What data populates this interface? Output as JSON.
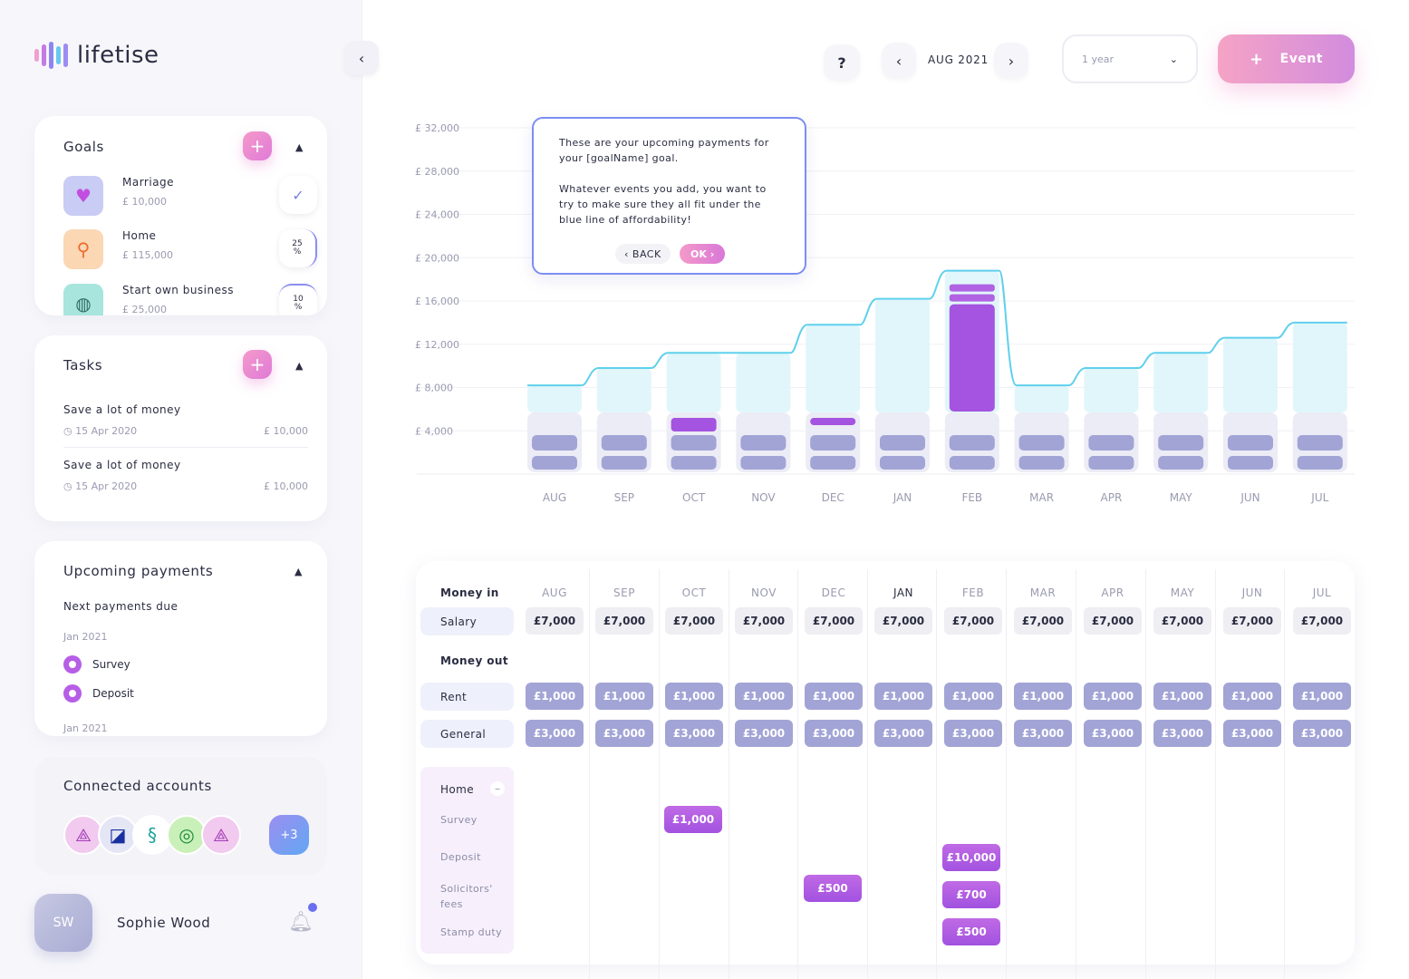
{
  "app": {
    "name": "lifetise"
  },
  "colors": {
    "accent_pink": "#f49ac9",
    "accent_purple": "#b65ee6",
    "affordability_line": "#5fd0ec",
    "expense_bar": "#a2a4d6"
  },
  "goals": {
    "title": "Goals",
    "items": [
      {
        "name": "Marriage",
        "amount": "£ 10,000",
        "icon": "heart-icon",
        "status": "check"
      },
      {
        "name": "Home",
        "amount": "£ 115,000",
        "icon": "key-icon",
        "status": "25\n%"
      },
      {
        "name": "Start own business",
        "amount": "£ 25,000",
        "icon": "globe-icon",
        "status": "10\n%"
      }
    ]
  },
  "tasks": {
    "title": "Tasks",
    "items": [
      {
        "name": "Save a lot of money",
        "date": "15 Apr 2020",
        "amount": "£ 10,000"
      },
      {
        "name": "Save a lot of money",
        "date": "15 Apr 2020",
        "amount": "£ 10,000"
      }
    ]
  },
  "payments": {
    "title": "Upcoming payments",
    "subtitle": "Next payments due",
    "month1": "Jan 2021",
    "item1": "Survey",
    "item2": "Deposit",
    "month2": "Jan 2021"
  },
  "accounts": {
    "title": "Connected accounts",
    "more": "+3"
  },
  "user": {
    "initials": "SW",
    "name": "Sophie Wood"
  },
  "topbar": {
    "help": "?",
    "month": "AUG 2021",
    "period": "1 year",
    "event_label": "Event"
  },
  "tooltip": {
    "line1": "These are your upcoming payments for your [goalName] goal.",
    "line2": "Whatever events you add, you want to try to make sure they all fit under the blue line of affordability!",
    "back": "BACK",
    "ok": "OK"
  },
  "chart_data": {
    "type": "bar",
    "categories": [
      "AUG",
      "SEP",
      "OCT",
      "NOV",
      "DEC",
      "JAN",
      "FEB",
      "MAR",
      "APR",
      "MAY",
      "JUN",
      "JUL"
    ],
    "y_ticks": [
      "£ 4,000",
      "£ 8,000",
      "£ 12,000",
      "£ 16,000",
      "£ 20,000",
      "£ 24,000",
      "£ 28,000",
      "£ 32,000"
    ],
    "ylim": [
      0,
      32000
    ],
    "series": [
      {
        "name": "Rent",
        "values": [
          1000,
          1000,
          1000,
          1000,
          1000,
          1000,
          1000,
          1000,
          1000,
          1000,
          1000,
          1000
        ]
      },
      {
        "name": "General",
        "values": [
          3000,
          3000,
          3000,
          3000,
          3000,
          3000,
          3000,
          3000,
          3000,
          3000,
          3000,
          3000
        ]
      },
      {
        "name": "Home",
        "values": [
          0,
          0,
          1000,
          0,
          500,
          0,
          11200,
          0,
          0,
          0,
          0,
          0
        ]
      }
    ],
    "affordability": [
      8200,
      9800,
      11200,
      11200,
      13800,
      16200,
      18800,
      8200,
      9800,
      11200,
      12600,
      14000
    ]
  },
  "table": {
    "money_in": "Money in",
    "money_out": "Money out",
    "months": [
      "AUG",
      "SEP",
      "OCT",
      "NOV",
      "DEC",
      "JAN",
      "FEB",
      "MAR",
      "APR",
      "MAY",
      "JUN",
      "JUL"
    ],
    "salary_label": "Salary",
    "salary": [
      "£7,000",
      "£7,000",
      "£7,000",
      "£7,000",
      "£7,000",
      "£7,000",
      "£7,000",
      "£7,000",
      "£7,000",
      "£7,000",
      "£7,000",
      "£7,000"
    ],
    "rent_label": "Rent",
    "rent": [
      "£1,000",
      "£1,000",
      "£1,000",
      "£1,000",
      "£1,000",
      "£1,000",
      "£1,000",
      "£1,000",
      "£1,000",
      "£1,000",
      "£1,000",
      "£1,000"
    ],
    "general_label": "General",
    "general": [
      "£3,000",
      "£3,000",
      "£3,000",
      "£3,000",
      "£3,000",
      "£3,000",
      "£3,000",
      "£3,000",
      "£3,000",
      "£3,000",
      "£3,000",
      "£3,000"
    ],
    "goal_title": "Home",
    "goal_rows": [
      "Survey",
      "Deposit",
      "Solicitors' fees",
      "Stamp duty"
    ],
    "goal_cells": {
      "survey_oct": "£1,000",
      "deposit_feb": "£10,000",
      "solicitors_dec": "£500",
      "solicitors_feb": "£700",
      "stamp_feb": "£500"
    }
  }
}
